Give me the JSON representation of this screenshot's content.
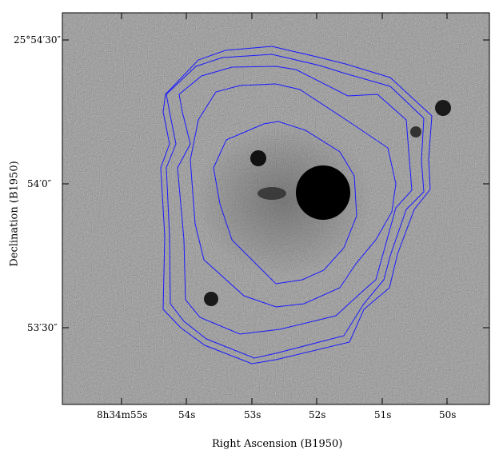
{
  "axes": {
    "x_label": "Right Ascension (B1950)",
    "y_label": "Declination (B1950)",
    "x_ticks": [
      "8h34m55s",
      "54s",
      "53s",
      "52s",
      "51s",
      "50s"
    ],
    "y_ticks": [
      "25°54′30″",
      "54′0″",
      "53′30″"
    ]
  },
  "image": {
    "type": "grayscale astronomical image with blue contour overlay",
    "contour_color": "#1a1aff",
    "contour_levels": 5,
    "features": [
      "bright-central-source",
      "small-dark-source-upper-left",
      "compact-source-lower-left",
      "compact-source-upper-right"
    ]
  }
}
